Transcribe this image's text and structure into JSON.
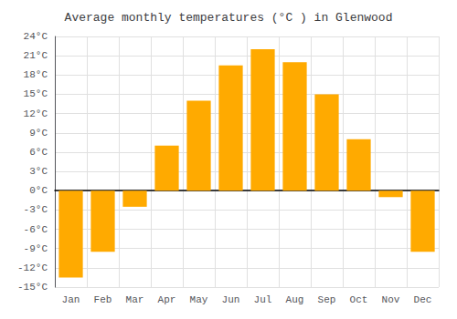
{
  "chart_data": {
    "type": "bar",
    "title": "Average monthly temperatures (°C ) in Glenwood",
    "categories": [
      "Jan",
      "Feb",
      "Mar",
      "Apr",
      "May",
      "Jun",
      "Jul",
      "Aug",
      "Sep",
      "Oct",
      "Nov",
      "Dec"
    ],
    "values": [
      -13.5,
      -9.5,
      -2.5,
      7.0,
      14.0,
      19.5,
      22.0,
      20.0,
      15.0,
      8.0,
      -1.0,
      -9.5
    ],
    "color": "#FFAA00",
    "ylim": [
      -15,
      24
    ],
    "yticks": [
      {
        "value": -15,
        "label": "-15°C"
      },
      {
        "value": -12,
        "label": "-12°C"
      },
      {
        "value": -9,
        "label": "-9°C"
      },
      {
        "value": -6,
        "label": "-6°C"
      },
      {
        "value": -3,
        "label": "-3°C"
      },
      {
        "value": 0,
        "label": "0°C"
      },
      {
        "value": 3,
        "label": "3°C"
      },
      {
        "value": 6,
        "label": "6°C"
      },
      {
        "value": 9,
        "label": "9°C"
      },
      {
        "value": 12,
        "label": "12°C"
      },
      {
        "value": 15,
        "label": "15°C"
      },
      {
        "value": 18,
        "label": "18°C"
      },
      {
        "value": 21,
        "label": "21°C"
      },
      {
        "value": 24,
        "label": "24°C"
      }
    ],
    "grid": true
  }
}
